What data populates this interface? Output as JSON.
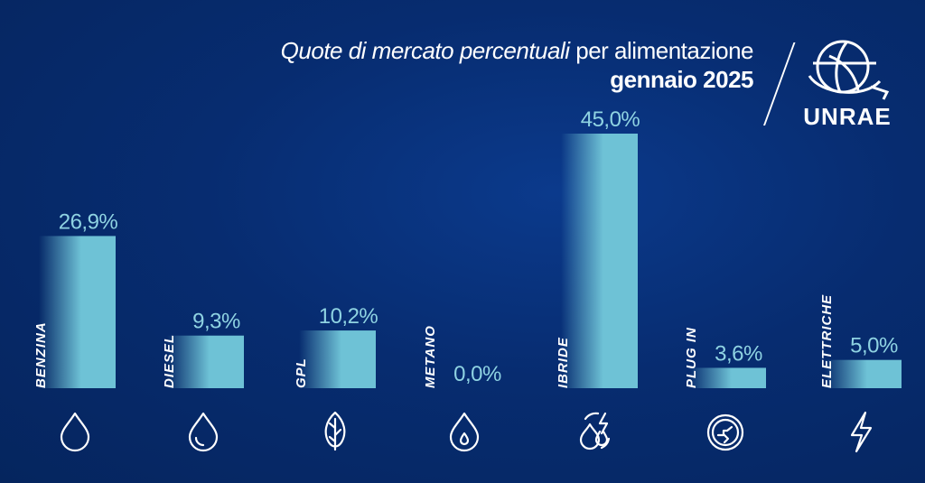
{
  "title": {
    "italic_part": "Quote di mercato percentuali",
    "regular_part": " per alimentazione",
    "subtitle": "gennaio 2025"
  },
  "logo": {
    "text": "UNRAE"
  },
  "colors": {
    "background": "#072c70",
    "bar": "#6ec2d6",
    "value_text": "#8fd3e2",
    "label_text": "#ffffff"
  },
  "chart_data": {
    "type": "bar",
    "title": "Quote di mercato percentuali per alimentazione",
    "subtitle": "gennaio 2025",
    "categories": [
      "BENZINA",
      "DIESEL",
      "GPL",
      "METANO",
      "IBRIDE",
      "PLUG IN",
      "ELETTRICHE"
    ],
    "values": [
      26.9,
      9.3,
      10.2,
      0.0,
      45.0,
      3.6,
      5.0
    ],
    "value_labels": [
      "26,9%",
      "9,3%",
      "10,2%",
      "0,0%",
      "45,0%",
      "3,6%",
      "5,0%"
    ],
    "icons": [
      "fuel-drop-icon",
      "diesel-drop-icon",
      "leaf-icon",
      "gas-drop-icon",
      "hybrid-drop-bolt-icon",
      "plug-icon",
      "bolt-icon"
    ],
    "ylim": [
      0,
      45
    ],
    "grid": false,
    "legend": "none"
  }
}
